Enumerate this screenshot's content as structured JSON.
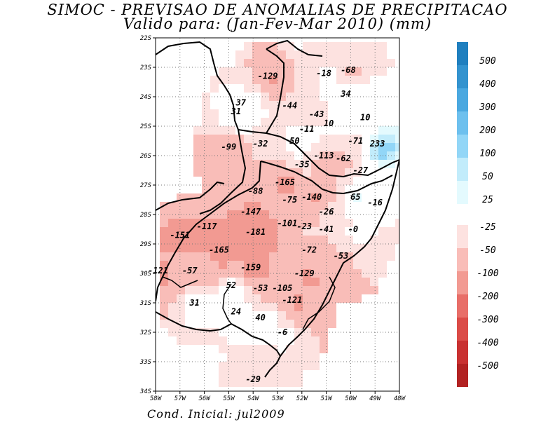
{
  "title": {
    "line1": "SIMOC - PREVISAO DE ANOMALIAS DE PRECIPITACAO",
    "line2": "Valido para: (Jan-Fev-Mar 2010) (mm)"
  },
  "footer": "Cond. Inicial: jul2009",
  "axes": {
    "lat_labels": [
      "22S",
      "23S",
      "24S",
      "25S",
      "26S",
      "27S",
      "28S",
      "29S",
      "30S",
      "31S",
      "32S",
      "33S",
      "34S"
    ],
    "lon_labels": [
      "58W",
      "57W",
      "56W",
      "55W",
      "54W",
      "53W",
      "52W",
      "51W",
      "50W",
      "49W",
      "48W"
    ]
  },
  "colorbar": {
    "positive": [
      {
        "label": "500",
        "color": "#1f7fbf"
      },
      {
        "label": "400",
        "color": "#3393cf"
      },
      {
        "label": "300",
        "color": "#4aa8e0"
      },
      {
        "label": "200",
        "color": "#6dc0ee"
      },
      {
        "label": "100",
        "color": "#92d6f7"
      },
      {
        "label": "50",
        "color": "#c2ecfb"
      },
      {
        "label": "25",
        "color": "#e4fafe"
      }
    ],
    "negative": [
      {
        "label": "-25",
        "color": "#fde2e0"
      },
      {
        "label": "-50",
        "color": "#f9bdb8"
      },
      {
        "label": "-100",
        "color": "#f29a92"
      },
      {
        "label": "-200",
        "color": "#e86e68"
      },
      {
        "label": "-300",
        "color": "#db4b47"
      },
      {
        "label": "-400",
        "color": "#c93131"
      },
      {
        "label": "-500",
        "color": "#b22222"
      }
    ]
  },
  "annotations": [
    {
      "text": "-129",
      "lon": -53.4,
      "lat": -23.3
    },
    {
      "text": "-18",
      "lon": -51.1,
      "lat": -23.2
    },
    {
      "text": "-68",
      "lon": -50.1,
      "lat": -23.1
    },
    {
      "text": "34",
      "lon": -50.2,
      "lat": -23.9
    },
    {
      "text": "37",
      "lon": -54.5,
      "lat": -24.2
    },
    {
      "text": "31",
      "lon": -54.7,
      "lat": -24.5
    },
    {
      "text": "-44",
      "lon": -52.5,
      "lat": -24.3
    },
    {
      "text": "-43",
      "lon": -51.4,
      "lat": -24.6
    },
    {
      "text": "10",
      "lon": -50.9,
      "lat": -24.9
    },
    {
      "text": "10",
      "lon": -49.4,
      "lat": -24.7
    },
    {
      "text": "-11",
      "lon": -51.8,
      "lat": -25.1
    },
    {
      "text": "50",
      "lon": -52.3,
      "lat": -25.5
    },
    {
      "text": "-71",
      "lon": -49.8,
      "lat": -25.5
    },
    {
      "text": "233",
      "lon": -48.9,
      "lat": -25.6
    },
    {
      "text": "-99",
      "lon": -55.0,
      "lat": -25.7
    },
    {
      "text": "-32",
      "lon": -53.7,
      "lat": -25.6
    },
    {
      "text": "-113",
      "lon": -51.1,
      "lat": -26.0
    },
    {
      "text": "-62",
      "lon": -50.3,
      "lat": -26.1
    },
    {
      "text": "-35",
      "lon": -52.0,
      "lat": -26.3
    },
    {
      "text": "-27",
      "lon": -49.6,
      "lat": -26.5
    },
    {
      "text": "-165",
      "lon": -52.7,
      "lat": -26.9
    },
    {
      "text": "-88",
      "lon": -53.9,
      "lat": -27.2
    },
    {
      "text": "-140",
      "lon": -51.6,
      "lat": -27.4
    },
    {
      "text": "-75",
      "lon": -52.5,
      "lat": -27.5
    },
    {
      "text": "65",
      "lon": -49.8,
      "lat": -27.4
    },
    {
      "text": "-16",
      "lon": -49.0,
      "lat": -27.6
    },
    {
      "text": "-147",
      "lon": -54.1,
      "lat": -27.9
    },
    {
      "text": "-26",
      "lon": -51.0,
      "lat": -27.9
    },
    {
      "text": "-117",
      "lon": -55.9,
      "lat": -28.4
    },
    {
      "text": "-181",
      "lon": -53.9,
      "lat": -28.6
    },
    {
      "text": "-101",
      "lon": -52.6,
      "lat": -28.3
    },
    {
      "text": "-23",
      "lon": -51.9,
      "lat": -28.4
    },
    {
      "text": "-41",
      "lon": -51.0,
      "lat": -28.5
    },
    {
      "text": "-0",
      "lon": -49.9,
      "lat": -28.5
    },
    {
      "text": "-151",
      "lon": -57.0,
      "lat": -28.7
    },
    {
      "text": "-165",
      "lon": -55.4,
      "lat": -29.2
    },
    {
      "text": "-72",
      "lon": -51.7,
      "lat": -29.2
    },
    {
      "text": "-53",
      "lon": -50.4,
      "lat": -29.4
    },
    {
      "text": "-121",
      "lon": -57.9,
      "lat": -29.9
    },
    {
      "text": "-57",
      "lon": -56.6,
      "lat": -29.9
    },
    {
      "text": "-159",
      "lon": -54.1,
      "lat": -29.8
    },
    {
      "text": "-129",
      "lon": -51.9,
      "lat": -30.0
    },
    {
      "text": "52",
      "lon": -54.9,
      "lat": -30.4
    },
    {
      "text": "-53",
      "lon": -53.7,
      "lat": -30.5
    },
    {
      "text": "-105",
      "lon": -52.8,
      "lat": -30.5
    },
    {
      "text": "-121",
      "lon": -52.4,
      "lat": -30.9
    },
    {
      "text": "31",
      "lon": -56.4,
      "lat": -31.0
    },
    {
      "text": "24",
      "lon": -54.7,
      "lat": -31.3
    },
    {
      "text": "40",
      "lon": -53.7,
      "lat": -31.5
    },
    {
      "text": "-6",
      "lon": -52.8,
      "lat": -32.0
    },
    {
      "text": "-29",
      "lon": -54.0,
      "lat": -33.6
    }
  ]
}
